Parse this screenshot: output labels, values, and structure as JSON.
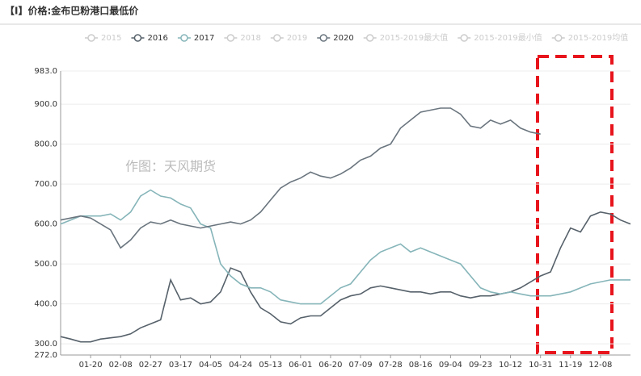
{
  "chart_data": {
    "type": "line",
    "title": "【I】价格:金布巴粉港口最低价",
    "annotation": "作图：天风期货",
    "x": [
      null,
      null,
      null,
      "01-20",
      null,
      null,
      "02-08",
      null,
      null,
      "02-27",
      null,
      null,
      "03-17",
      null,
      null,
      "04-05",
      null,
      null,
      "04-24",
      null,
      null,
      "05-13",
      null,
      null,
      "06-01",
      null,
      null,
      "06-20",
      null,
      null,
      "07-09",
      null,
      null,
      "07-28",
      null,
      null,
      "08-16",
      null,
      null,
      "09-04",
      null,
      null,
      "09-23",
      null,
      null,
      "10-12",
      null,
      null,
      "10-31",
      null,
      null,
      "11-19",
      null,
      null,
      "12-08",
      null,
      null,
      null
    ],
    "ylim": [
      272,
      983
    ],
    "yticks": [
      {
        "value": 272,
        "label": "272.0"
      },
      {
        "value": 300,
        "label": "300.0"
      },
      {
        "value": 400,
        "label": "400.0"
      },
      {
        "value": 500,
        "label": "500.0"
      },
      {
        "value": 600,
        "label": "600.0"
      },
      {
        "value": 700,
        "label": "700.0"
      },
      {
        "value": 800,
        "label": "800.0"
      },
      {
        "value": 900,
        "label": "900.0"
      },
      {
        "value": 983,
        "label": "983.0"
      }
    ],
    "grid": true,
    "series": [
      {
        "name": "2015",
        "color": "#cccccc",
        "active": false,
        "values": [
          null,
          null,
          null,
          null,
          null,
          null,
          null,
          null,
          null,
          null,
          null,
          null,
          null,
          null,
          null,
          null,
          null,
          null,
          null,
          null,
          null,
          null,
          null,
          null,
          null,
          null,
          null,
          null,
          null,
          null,
          null,
          null,
          null,
          null,
          null,
          null,
          null,
          null,
          null,
          null,
          null,
          null,
          null,
          null,
          null,
          null,
          null,
          null,
          null,
          null,
          null,
          null,
          null,
          null,
          null,
          null,
          null,
          null
        ]
      },
      {
        "name": "2016",
        "color": "#56616a",
        "active": true,
        "values": [
          318,
          312,
          305,
          305,
          312,
          315,
          318,
          325,
          340,
          350,
          360,
          460,
          410,
          415,
          400,
          405,
          430,
          490,
          480,
          430,
          390,
          375,
          355,
          350,
          365,
          370,
          370,
          390,
          410,
          420,
          425,
          440,
          445,
          440,
          435,
          430,
          430,
          425,
          430,
          430,
          420,
          415,
          420,
          420,
          425,
          430,
          440,
          455,
          470,
          480,
          540,
          590,
          580,
          620,
          630,
          625,
          610,
          600
        ]
      },
      {
        "name": "2017",
        "color": "#86b5b9",
        "active": true,
        "values": [
          600,
          610,
          620,
          620,
          620,
          625,
          610,
          630,
          670,
          685,
          670,
          665,
          650,
          640,
          600,
          590,
          500,
          470,
          450,
          440,
          440,
          430,
          410,
          405,
          400,
          400,
          400,
          420,
          440,
          450,
          480,
          510,
          530,
          540,
          550,
          530,
          540,
          530,
          520,
          510,
          500,
          470,
          440,
          430,
          425,
          430,
          425,
          420,
          420,
          420,
          425,
          430,
          440,
          450,
          455,
          460,
          460,
          460
        ]
      },
      {
        "name": "2018",
        "color": "#cccccc",
        "active": false,
        "values": [
          null,
          null,
          null,
          null,
          null,
          null,
          null,
          null,
          null,
          null,
          null,
          null,
          null,
          null,
          null,
          null,
          null,
          null,
          null,
          null,
          null,
          null,
          null,
          null,
          null,
          null,
          null,
          null,
          null,
          null,
          null,
          null,
          null,
          null,
          null,
          null,
          null,
          null,
          null,
          null,
          null,
          null,
          null,
          null,
          null,
          null,
          null,
          null,
          null,
          null,
          null,
          null,
          null,
          null,
          null,
          null,
          null,
          null
        ]
      },
      {
        "name": "2019",
        "color": "#cccccc",
        "active": false,
        "values": [
          null,
          null,
          null,
          null,
          null,
          null,
          null,
          null,
          null,
          null,
          null,
          null,
          null,
          null,
          null,
          null,
          null,
          null,
          null,
          null,
          null,
          null,
          null,
          null,
          null,
          null,
          null,
          null,
          null,
          null,
          null,
          null,
          null,
          null,
          null,
          null,
          null,
          null,
          null,
          null,
          null,
          null,
          null,
          null,
          null,
          null,
          null,
          null,
          null,
          null,
          null,
          null,
          null,
          null,
          null,
          null,
          null,
          null
        ]
      },
      {
        "name": "2020",
        "color": "#6a757e",
        "active": true,
        "values": [
          610,
          615,
          620,
          615,
          600,
          585,
          540,
          560,
          590,
          605,
          600,
          610,
          600,
          595,
          590,
          595,
          600,
          605,
          600,
          610,
          630,
          660,
          690,
          705,
          715,
          730,
          720,
          715,
          725,
          740,
          760,
          770,
          790,
          800,
          840,
          860,
          880,
          885,
          890,
          890,
          875,
          845,
          840,
          860,
          850,
          860,
          840,
          830,
          825,
          null,
          null,
          null,
          null,
          null,
          null,
          null,
          null,
          null
        ]
      },
      {
        "name": "2015-2019最大值",
        "color": "#cccccc",
        "active": false,
        "values": [
          null,
          null,
          null,
          null,
          null,
          null,
          null,
          null,
          null,
          null,
          null,
          null,
          null,
          null,
          null,
          null,
          null,
          null,
          null,
          null,
          null,
          null,
          null,
          null,
          null,
          null,
          null,
          null,
          null,
          null,
          null,
          null,
          null,
          null,
          null,
          null,
          null,
          null,
          null,
          null,
          null,
          null,
          null,
          null,
          null,
          null,
          null,
          null,
          null,
          null,
          null,
          null,
          null,
          null,
          null,
          null,
          null,
          null
        ]
      },
      {
        "name": "2015-2019最小值",
        "color": "#cccccc",
        "active": false,
        "values": [
          null,
          null,
          null,
          null,
          null,
          null,
          null,
          null,
          null,
          null,
          null,
          null,
          null,
          null,
          null,
          null,
          null,
          null,
          null,
          null,
          null,
          null,
          null,
          null,
          null,
          null,
          null,
          null,
          null,
          null,
          null,
          null,
          null,
          null,
          null,
          null,
          null,
          null,
          null,
          null,
          null,
          null,
          null,
          null,
          null,
          null,
          null,
          null,
          null,
          null,
          null,
          null,
          null,
          null,
          null,
          null,
          null,
          null
        ]
      },
      {
        "name": "2015-2019均值",
        "color": "#cccccc",
        "active": false,
        "values": [
          null,
          null,
          null,
          null,
          null,
          null,
          null,
          null,
          null,
          null,
          null,
          null,
          null,
          null,
          null,
          null,
          null,
          null,
          null,
          null,
          null,
          null,
          null,
          null,
          null,
          null,
          null,
          null,
          null,
          null,
          null,
          null,
          null,
          null,
          null,
          null,
          null,
          null,
          null,
          null,
          null,
          null,
          null,
          null,
          null,
          null,
          null,
          null,
          null,
          null,
          null,
          null,
          null,
          null,
          null,
          null,
          null,
          null
        ]
      }
    ]
  }
}
